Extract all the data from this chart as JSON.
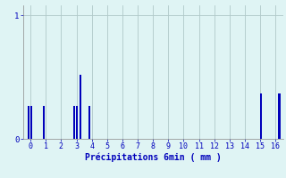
{
  "title": "",
  "xlabel": "Précipitations 6min ( mm )",
  "ylabel": "",
  "background_color": "#dff4f4",
  "bar_color": "#0000bb",
  "grid_color": "#b0c8c8",
  "axis_label_color": "#0000bb",
  "tick_color": "#0000bb",
  "xlim": [
    -0.5,
    16.5
  ],
  "ylim": [
    0,
    1.08
  ],
  "yticks": [
    0,
    1
  ],
  "xticks": [
    0,
    1,
    2,
    3,
    4,
    5,
    6,
    7,
    8,
    9,
    10,
    11,
    12,
    13,
    14,
    15,
    16
  ],
  "bar_positions": [
    -0.15,
    0.05,
    0.85,
    2.85,
    3.05,
    3.25,
    3.85,
    15.05,
    16.25
  ],
  "bar_heights": [
    0.27,
    0.27,
    0.27,
    0.27,
    0.27,
    0.52,
    0.27,
    0.37,
    0.37
  ],
  "bar_width": 0.12
}
